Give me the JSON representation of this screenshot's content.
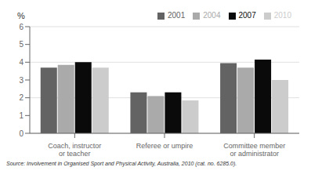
{
  "chart_data": {
    "type": "bar",
    "categories": [
      "Coach, instructor or teacher",
      "Referee or umpire",
      "Committee member or administrator"
    ],
    "series": [
      {
        "name": "2001",
        "color": "#636363",
        "values": [
          3.7,
          2.3,
          3.95
        ]
      },
      {
        "name": "2004",
        "color": "#aaaaaa",
        "values": [
          3.85,
          2.1,
          3.7
        ]
      },
      {
        "name": "2007",
        "color": "#0a0a0a",
        "values": [
          4.0,
          2.3,
          4.15
        ]
      },
      {
        "name": "2010",
        "color": "#cccccc",
        "values": [
          3.7,
          1.85,
          3.0
        ]
      }
    ],
    "ylabel": "%",
    "ylim": [
      0,
      6
    ],
    "yticks": [
      0,
      1,
      2,
      3,
      4,
      5,
      6
    ],
    "grid": true,
    "legend": "upper right",
    "annotations": [
      "Source: Involvement in Organised Sport and Physical Activity, Australia, 2010 (cat. no. 6285.0)."
    ]
  }
}
